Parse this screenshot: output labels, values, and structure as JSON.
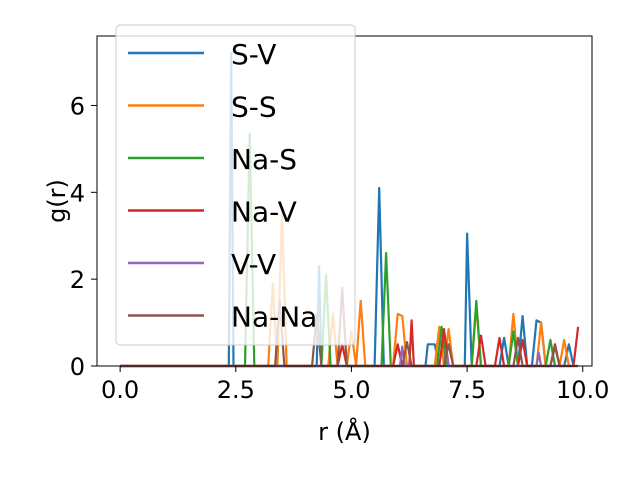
{
  "chart_data": {
    "type": "line",
    "title": "",
    "xlabel": "r (Å)",
    "ylabel": "g(r)",
    "xlim": [
      -0.5,
      10.2
    ],
    "ylim": [
      0,
      7.6
    ],
    "xticks": [
      0.0,
      2.5,
      5.0,
      7.5,
      10.0
    ],
    "xtick_labels": [
      "0.0",
      "2.5",
      "5.0",
      "7.5",
      "10.0"
    ],
    "yticks": [
      0,
      2,
      4,
      6
    ],
    "ytick_labels": [
      "0",
      "2",
      "4",
      "6"
    ],
    "grid": false,
    "legend_position": "top-left",
    "series": [
      {
        "name": "S-V",
        "color": "#1f77b4",
        "points": [
          [
            0,
            0
          ],
          [
            2.25,
            0
          ],
          [
            2.35,
            0
          ],
          [
            2.4,
            7.2
          ],
          [
            2.45,
            0
          ],
          [
            4.25,
            0
          ],
          [
            4.3,
            2.3
          ],
          [
            4.35,
            0
          ],
          [
            5.5,
            0
          ],
          [
            5.6,
            4.1
          ],
          [
            5.7,
            0
          ],
          [
            6.6,
            0
          ],
          [
            6.65,
            0.5
          ],
          [
            6.8,
            0.5
          ],
          [
            6.9,
            0
          ],
          [
            7.45,
            0
          ],
          [
            7.5,
            3.05
          ],
          [
            7.6,
            0
          ],
          [
            8.2,
            0
          ],
          [
            8.3,
            0.65
          ],
          [
            8.4,
            0
          ],
          [
            8.6,
            0
          ],
          [
            8.7,
            1.15
          ],
          [
            8.8,
            0
          ],
          [
            8.9,
            0
          ],
          [
            9.0,
            1.05
          ],
          [
            9.1,
            1.0
          ],
          [
            9.2,
            0
          ],
          [
            9.6,
            0
          ],
          [
            9.7,
            0.5
          ],
          [
            9.8,
            0
          ]
        ]
      },
      {
        "name": "S-S",
        "color": "#ff7f0e",
        "points": [
          [
            0,
            0
          ],
          [
            3.2,
            0
          ],
          [
            3.3,
            1.9
          ],
          [
            3.4,
            0
          ],
          [
            3.5,
            3.5
          ],
          [
            3.6,
            0
          ],
          [
            4.5,
            0
          ],
          [
            4.6,
            1.2
          ],
          [
            4.7,
            0
          ],
          [
            4.9,
            0
          ],
          [
            5.0,
            0.8
          ],
          [
            5.1,
            0
          ],
          [
            5.2,
            1.5
          ],
          [
            5.3,
            0
          ],
          [
            5.9,
            0
          ],
          [
            6.0,
            1.2
          ],
          [
            6.1,
            1.15
          ],
          [
            6.2,
            0
          ],
          [
            6.8,
            0
          ],
          [
            6.9,
            0.9
          ],
          [
            7.0,
            0
          ],
          [
            7.1,
            0.85
          ],
          [
            7.2,
            0
          ],
          [
            7.6,
            0
          ],
          [
            7.7,
            1.4
          ],
          [
            7.8,
            0
          ],
          [
            8.4,
            0
          ],
          [
            8.5,
            1.2
          ],
          [
            8.6,
            0
          ],
          [
            9.0,
            0
          ],
          [
            9.1,
            1.0
          ],
          [
            9.2,
            0
          ],
          [
            9.5,
            0
          ],
          [
            9.6,
            0.6
          ],
          [
            9.7,
            0
          ]
        ]
      },
      {
        "name": "Na-S",
        "color": "#2ca02c",
        "points": [
          [
            0,
            0
          ],
          [
            2.7,
            0
          ],
          [
            2.8,
            5.35
          ],
          [
            2.9,
            0
          ],
          [
            4.35,
            0
          ],
          [
            4.45,
            2.1
          ],
          [
            4.55,
            0
          ],
          [
            5.65,
            0
          ],
          [
            5.75,
            2.6
          ],
          [
            5.85,
            0
          ],
          [
            6.85,
            0
          ],
          [
            6.95,
            0.9
          ],
          [
            7.05,
            0
          ],
          [
            7.6,
            0
          ],
          [
            7.7,
            1.5
          ],
          [
            7.8,
            0
          ],
          [
            8.4,
            0
          ],
          [
            8.5,
            0.8
          ],
          [
            8.6,
            0
          ],
          [
            9.2,
            0
          ],
          [
            9.3,
            0.6
          ],
          [
            9.4,
            0
          ]
        ]
      },
      {
        "name": "Na-V",
        "color": "#d62728",
        "points": [
          [
            0,
            0
          ],
          [
            4.7,
            0
          ],
          [
            4.8,
            0.5
          ],
          [
            4.9,
            0
          ],
          [
            5.9,
            0
          ],
          [
            6.0,
            0.5
          ],
          [
            6.1,
            0
          ],
          [
            6.25,
            0
          ],
          [
            6.3,
            1.05
          ],
          [
            6.35,
            0
          ],
          [
            6.9,
            0
          ],
          [
            7.0,
            0.85
          ],
          [
            7.1,
            0
          ],
          [
            7.7,
            0
          ],
          [
            7.8,
            0.7
          ],
          [
            7.9,
            0
          ],
          [
            8.1,
            0
          ],
          [
            8.2,
            0.65
          ],
          [
            8.3,
            0
          ],
          [
            8.6,
            0
          ],
          [
            8.7,
            0.6
          ],
          [
            8.8,
            0
          ],
          [
            9.3,
            0
          ],
          [
            9.4,
            0.5
          ],
          [
            9.5,
            0
          ],
          [
            9.8,
            0
          ],
          [
            9.9,
            0.9
          ]
        ]
      },
      {
        "name": "V-V",
        "color": "#9467bd",
        "points": [
          [
            0,
            0
          ],
          [
            6.05,
            0
          ],
          [
            6.1,
            0.45
          ],
          [
            6.15,
            0
          ],
          [
            7.0,
            0
          ],
          [
            7.05,
            0.35
          ],
          [
            7.1,
            0
          ],
          [
            9.0,
            0
          ],
          [
            9.05,
            0.3
          ],
          [
            9.1,
            0
          ],
          [
            9.9,
            0
          ]
        ]
      },
      {
        "name": "Na-Na",
        "color": "#8c564b",
        "points": [
          [
            0,
            0
          ],
          [
            3.35,
            0
          ],
          [
            3.45,
            1.5
          ],
          [
            3.55,
            0
          ],
          [
            4.15,
            0
          ],
          [
            4.25,
            1.2
          ],
          [
            4.35,
            0
          ],
          [
            4.7,
            0
          ],
          [
            4.8,
            1.8
          ],
          [
            4.9,
            0
          ],
          [
            6.1,
            0
          ],
          [
            6.2,
            0.55
          ],
          [
            6.3,
            0
          ],
          [
            7.0,
            0
          ],
          [
            7.1,
            0.5
          ],
          [
            7.2,
            0
          ],
          [
            8.5,
            0
          ],
          [
            8.6,
            0.65
          ],
          [
            8.7,
            0
          ],
          [
            9.3,
            0
          ],
          [
            9.4,
            0.45
          ],
          [
            9.5,
            0
          ],
          [
            9.9,
            0
          ]
        ]
      }
    ]
  }
}
